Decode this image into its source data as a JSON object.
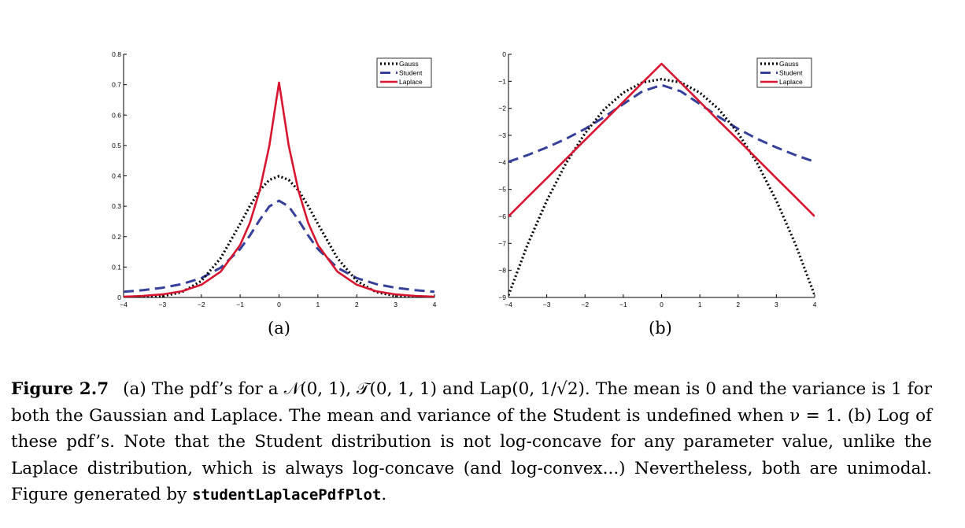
{
  "panel_labels": [
    "(a)",
    "(b)"
  ],
  "legend_entries": [
    "Gauss",
    "Student",
    "Laplace"
  ],
  "colors": {
    "gauss": "#000000",
    "student": "#34409a",
    "laplace": "#d8152f"
  },
  "chart_data": [
    {
      "type": "line",
      "id": "a",
      "title": "",
      "xlabel": "",
      "ylabel": "",
      "xlim": [
        -4,
        4
      ],
      "ylim": [
        0,
        0.8
      ],
      "xticks": [
        -4,
        -3,
        -2,
        -1,
        0,
        1,
        2,
        3,
        4
      ],
      "xtick_labels": [
        "−4",
        "−3",
        "−2",
        "−1",
        "0",
        "1",
        "2",
        "3",
        "4"
      ],
      "yticks": [
        0,
        0.1,
        0.2,
        0.3,
        0.4,
        0.5,
        0.6,
        0.7,
        0.8
      ],
      "ytick_labels": [
        "0",
        "0.1",
        "0.2",
        "0.3",
        "0.4",
        "0.5",
        "0.6",
        "0.7",
        "0.8"
      ],
      "legend": "top-right",
      "x": [
        -4,
        -3.5,
        -3,
        -2.5,
        -2,
        -1.5,
        -1,
        -0.75,
        -0.5,
        -0.25,
        0,
        0.25,
        0.5,
        0.75,
        1,
        1.5,
        2,
        2.5,
        3,
        3.5,
        4
      ],
      "series": [
        {
          "name": "Gauss",
          "style": "dotted",
          "values": [
            0.0001,
            0.0009,
            0.0044,
            0.0175,
            0.054,
            0.1295,
            0.242,
            0.3011,
            0.3521,
            0.3867,
            0.3989,
            0.3867,
            0.3521,
            0.3011,
            0.242,
            0.1295,
            0.054,
            0.0175,
            0.0044,
            0.0009,
            0.0001
          ]
        },
        {
          "name": "Student",
          "style": "dashed",
          "values": [
            0.0187,
            0.0241,
            0.0318,
            0.0439,
            0.0637,
            0.0979,
            0.1592,
            0.2037,
            0.2546,
            0.2996,
            0.3183,
            0.2996,
            0.2546,
            0.2037,
            0.1592,
            0.0979,
            0.0637,
            0.0439,
            0.0318,
            0.0241,
            0.0187
          ]
        },
        {
          "name": "Laplace",
          "style": "solid",
          "values": [
            0.0025,
            0.0051,
            0.0101,
            0.0205,
            0.0417,
            0.0848,
            0.1723,
            0.2456,
            0.3505,
            0.4998,
            0.7071,
            0.4998,
            0.3505,
            0.2456,
            0.1723,
            0.0848,
            0.0417,
            0.0205,
            0.0101,
            0.0051,
            0.0025
          ]
        }
      ]
    },
    {
      "type": "line",
      "id": "b",
      "title": "",
      "xlabel": "",
      "ylabel": "",
      "xlim": [
        -4,
        4
      ],
      "ylim": [
        -9,
        0
      ],
      "xticks": [
        -4,
        -3,
        -2,
        -1,
        0,
        1,
        2,
        3,
        4
      ],
      "xtick_labels": [
        "−4",
        "−3",
        "−2",
        "−1",
        "0",
        "1",
        "2",
        "3",
        "4"
      ],
      "yticks": [
        0,
        -1,
        -2,
        -3,
        -4,
        -5,
        -6,
        -7,
        -8,
        -9
      ],
      "ytick_labels": [
        "0",
        "−1",
        "−2",
        "−3",
        "−4",
        "−5",
        "−6",
        "−7",
        "−8",
        "−9"
      ],
      "legend": "top-right",
      "x": [
        -4,
        -3.5,
        -3,
        -2.5,
        -2,
        -1.5,
        -1,
        -0.5,
        0,
        0.5,
        1,
        1.5,
        2,
        2.5,
        3,
        3.5,
        4
      ],
      "series": [
        {
          "name": "Gauss",
          "style": "dotted",
          "values": [
            -8.92,
            -7.04,
            -5.42,
            -4.04,
            -2.92,
            -2.04,
            -1.42,
            -1.04,
            -0.92,
            -1.04,
            -1.42,
            -2.04,
            -2.92,
            -4.04,
            -5.42,
            -7.04,
            -8.92
          ]
        },
        {
          "name": "Student",
          "style": "dashed",
          "values": [
            -3.98,
            -3.73,
            -3.45,
            -3.13,
            -2.76,
            -2.32,
            -1.84,
            -1.37,
            -1.14,
            -1.37,
            -1.84,
            -2.32,
            -2.76,
            -3.13,
            -3.45,
            -3.73,
            -3.98
          ]
        },
        {
          "name": "Laplace",
          "style": "solid",
          "values": [
            -6.0,
            -5.29,
            -4.59,
            -3.88,
            -3.17,
            -2.47,
            -1.76,
            -1.05,
            -0.35,
            -1.05,
            -1.76,
            -2.47,
            -3.17,
            -3.88,
            -4.59,
            -5.29,
            -6.0
          ]
        }
      ]
    }
  ],
  "caption": {
    "figure_number": "Figure 2.7",
    "text": "(a) The pdf’s for a 𝒩(0, 1), 𝒯(0, 1, 1) and Lap(0, 1/√2). The mean is 0 and the variance is 1 for both the Gaussian and Laplace. The mean and variance of the Student is undefined when ν = 1. (b) Log of these pdf’s. Note that the Student distribution is not log-concave for any parameter value, unlike the Laplace distribution, which is always log-concave (and log-convex...) Nevertheless, both are unimodal.",
    "generated_prefix": "Figure generated by",
    "script_name": "studentLaplacePdfPlot",
    "generated_suffix": "."
  }
}
